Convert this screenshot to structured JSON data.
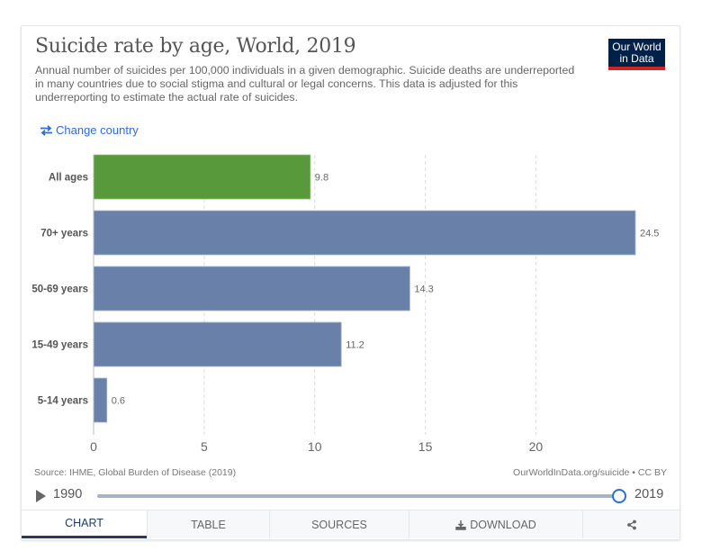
{
  "header": {
    "title": "Suicide rate by age, World, 2019",
    "subtitle": "Annual number of suicides per 100,000 individuals in a given demographic. Suicide deaths are underreported in many countries due to social stigma and cultural or legal concerns. This data is adjusted for this underreporting to estimate the actual rate of suicides.",
    "logo_line1": "Our World",
    "logo_line2": "in Data",
    "change_country_label": "Change country",
    "change_country_icon": "swap-arrows-icon"
  },
  "colors": {
    "highlight_bar": "#57993b",
    "default_bar": "#6981a9",
    "link": "#2a6fd6",
    "logo_bg": "#002147",
    "logo_accent": "#ce261e",
    "active_tab": "#1d3d63"
  },
  "chart_data": {
    "type": "bar",
    "orientation": "horizontal",
    "title": "Suicide rate by age, World, 2019",
    "xlabel": "",
    "ylabel": "",
    "categories": [
      "All ages",
      "70+ years",
      "50-69 years",
      "15-49 years",
      "5-14 years"
    ],
    "values": [
      9.8,
      24.5,
      14.3,
      11.2,
      0.6
    ],
    "value_labels": [
      "9.8",
      "24.5",
      "14.3",
      "11.2",
      "0.6"
    ],
    "highlighted": [
      "All ages"
    ],
    "xlim": [
      0,
      24.5
    ],
    "xticks": [
      0,
      5,
      10,
      15,
      20
    ],
    "xtick_labels": [
      "0",
      "5",
      "10",
      "15",
      "20"
    ],
    "grid": "vertical-dashed",
    "legend": "none"
  },
  "footer": {
    "source": "Source: IHME, Global Burden of Disease (2019)",
    "url": "OurWorldInData.org/suicide • CC BY"
  },
  "timeline": {
    "start_year": "1990",
    "end_year": "2019",
    "selected_year": "2019",
    "position_fraction": 1.0,
    "play_icon": "play-icon"
  },
  "tabs": [
    {
      "label": "CHART",
      "active": true
    },
    {
      "label": "TABLE",
      "active": false
    },
    {
      "label": "SOURCES",
      "active": false
    },
    {
      "label": "DOWNLOAD",
      "active": false,
      "icon": "download-icon"
    },
    {
      "label": "",
      "active": false,
      "icon": "share-icon"
    }
  ]
}
